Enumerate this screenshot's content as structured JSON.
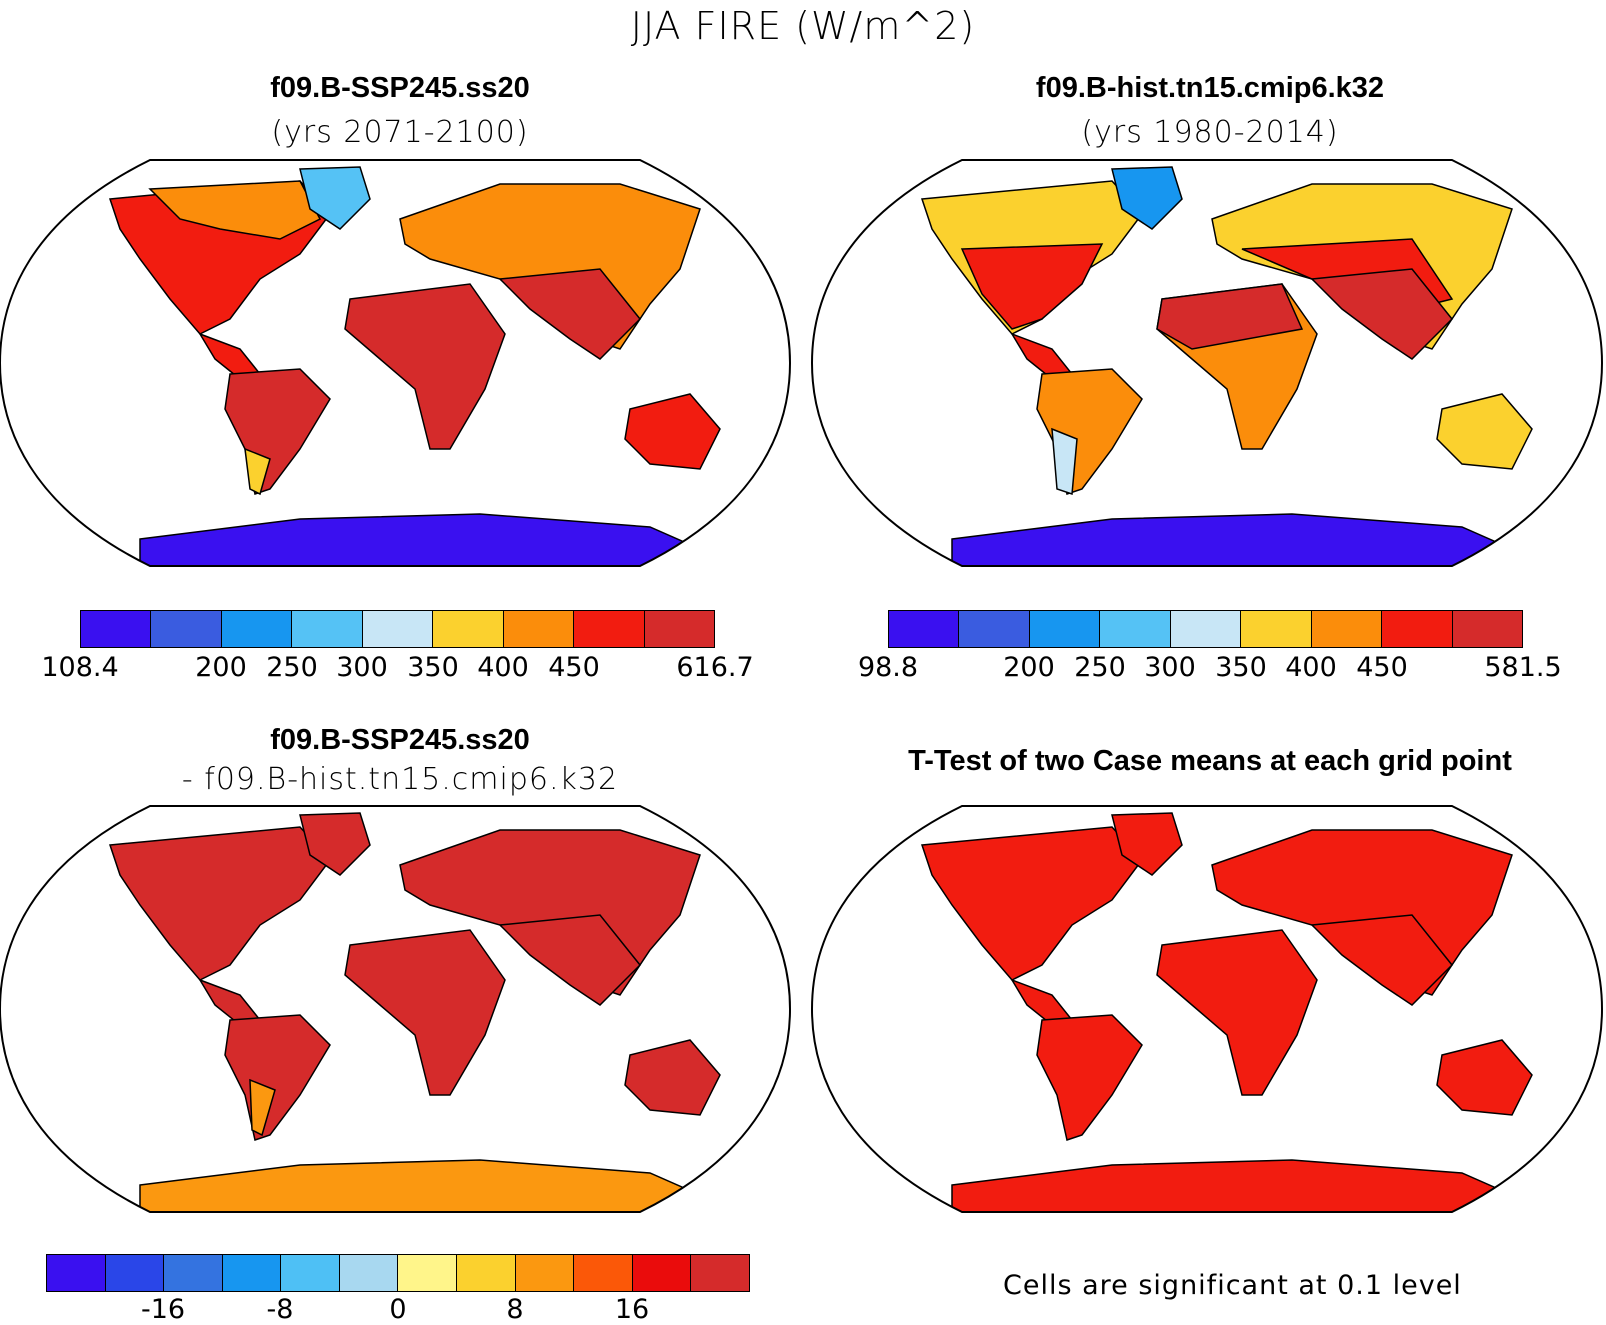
{
  "title": "JJA FIRE (W/m^2)",
  "palette_main": [
    "#3a10f0",
    "#3a5ce0",
    "#1796f0",
    "#55c2f5",
    "#c8e6f6",
    "#fbd12e",
    "#fb8d0b",
    "#f21c10",
    "#d52b2b"
  ],
  "palette_diff": [
    "#3a10f0",
    "#2a46e8",
    "#3473e0",
    "#1796f0",
    "#4ec0f5",
    "#a8d8f0",
    "#fff58a",
    "#fbd12e",
    "#fb9810",
    "#fb5808",
    "#ea0c0c",
    "#d52b2b"
  ],
  "panels": {
    "top_left": {
      "title": "f09.B-SSP245.ss20",
      "subtitle": "(yrs 2071-2100)",
      "colorbar_ticks": [
        "108.4",
        "200",
        "250",
        "300",
        "350",
        "400",
        "450",
        "616.7"
      ]
    },
    "top_right": {
      "title": "f09.B-hist.tn15.cmip6.k32",
      "subtitle": "(yrs 1980-2014)",
      "colorbar_ticks": [
        "98.8",
        "200",
        "250",
        "300",
        "350",
        "400",
        "450",
        "581.5"
      ]
    },
    "bottom_left": {
      "title": "f09.B-SSP245.ss20",
      "subtitle": "- f09.B-hist.tn15.cmip6.k32",
      "colorbar_ticks": [
        "-16",
        "-8",
        "0",
        "8",
        "16"
      ]
    },
    "bottom_right": {
      "title": "T-Test of two Case means at each grid point",
      "note": "Cells are significant at 0.1 level"
    }
  }
}
